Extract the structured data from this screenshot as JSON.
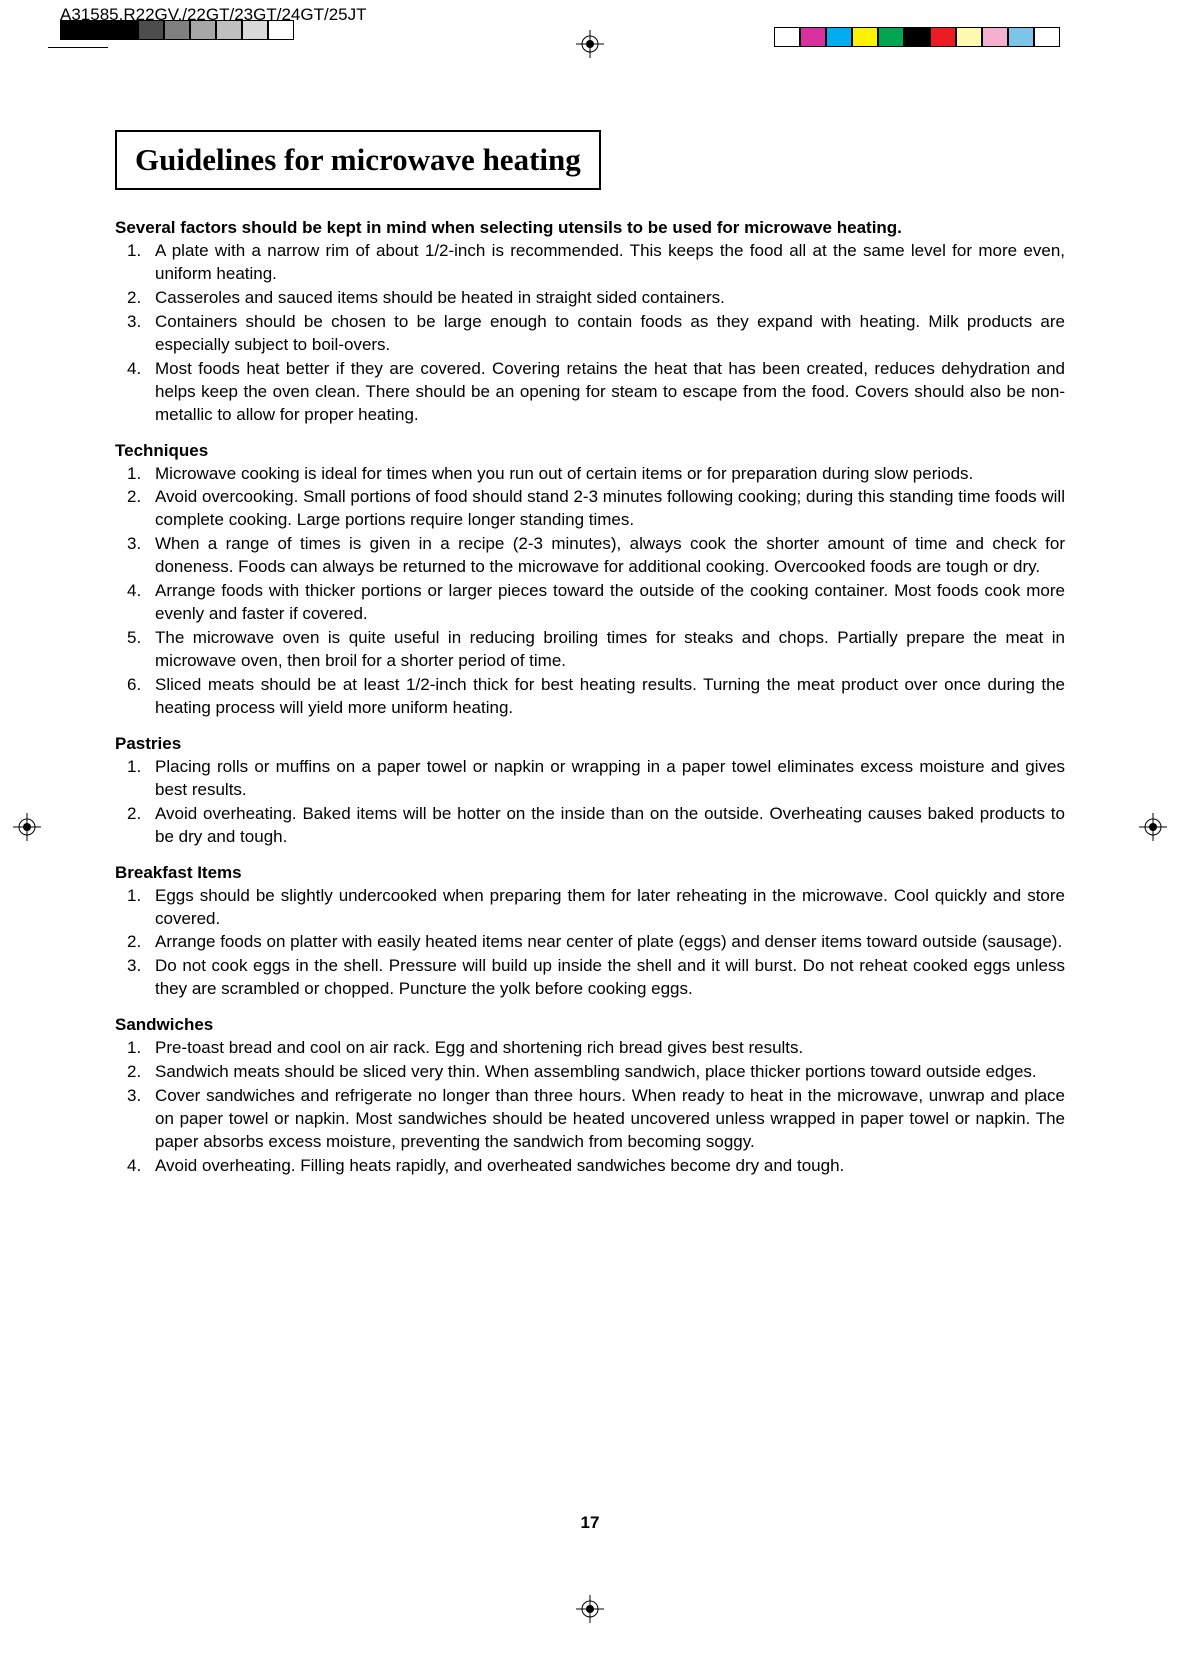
{
  "header_code": "A31585,R22GV,/22GT/23GT/24GT/25JT",
  "print_marks_left_colors": [
    "#000000",
    "#000000",
    "#000000",
    "#4d4d4d",
    "#808080",
    "#a6a6a6",
    "#bfbfbf",
    "#d9d9d9",
    "#ffffff"
  ],
  "print_marks_right_colors": [
    "#ffffff",
    "#d930a0",
    "#00adef",
    "#fff200",
    "#00a651",
    "#000000",
    "#ed1c24",
    "#fff9b1",
    "#f6b0cf",
    "#7cc5e8",
    "#ffffff"
  ],
  "title": "Guidelines for microwave heating",
  "intro_heading": "Several factors should be kept in mind when selecting utensils to be used for microwave heating.",
  "intro_items": [
    "A plate with a narrow rim of about 1/2-inch is recommended. This keeps the food all at the same level for more even, uniform heating.",
    "Casseroles and sauced items should be heated in straight sided containers.",
    "Containers should be chosen to be large enough to contain foods as they expand with heating. Milk products are especially subject to boil-overs.",
    "Most foods heat better if they are covered. Covering retains the heat that has been created, reduces dehydration and helps keep the oven clean. There should be an opening for steam to escape from the food. Covers should also be non-metallic to allow for proper heating."
  ],
  "sections": [
    {
      "heading": "Techniques",
      "items": [
        "Microwave cooking is ideal for times when you run out of certain items or for preparation during slow periods.",
        "Avoid overcooking. Small portions of food should stand 2-3 minutes following cooking; during this standing time foods will complete cooking. Large portions require longer standing times.",
        "When a range of times is given in a recipe (2-3 minutes), always cook the shorter amount of time and check for doneness. Foods can always be returned to the microwave for additional cooking. Overcooked foods are tough or dry.",
        "Arrange foods with thicker portions or larger pieces toward the outside of the cooking container. Most foods cook more evenly and faster if covered.",
        "The microwave oven is quite useful in reducing broiling times for steaks and chops. Partially prepare the meat in microwave oven, then broil for a shorter period of time.",
        "Sliced meats should be at least 1/2-inch thick for best heating results. Turning the meat product over once during the heating process will yield more uniform heating."
      ]
    },
    {
      "heading": "Pastries",
      "items": [
        "Placing rolls or muffins on a paper towel or napkin or wrapping in a paper towel eliminates excess moisture and gives best results.",
        "Avoid overheating. Baked items will be hotter on the inside than on the outside. Overheating causes baked products to be dry and tough."
      ]
    },
    {
      "heading": "Breakfast Items",
      "items": [
        "Eggs should be slightly undercooked when preparing them for later reheating in the microwave. Cool quickly and store covered.",
        "Arrange foods on platter with easily heated items near center of plate (eggs) and denser items toward outside (sausage).",
        "Do not cook eggs in the shell. Pressure will build up inside the shell and it will burst. Do not reheat cooked eggs unless they are scrambled or chopped. Puncture the yolk before cooking eggs."
      ]
    },
    {
      "heading": "Sandwiches",
      "items": [
        "Pre-toast bread and cool on air rack. Egg and shortening rich bread gives best results.",
        "Sandwich meats should be sliced very thin. When assembling sandwich, place thicker portions toward outside edges.",
        "Cover sandwiches and refrigerate no longer than three hours. When ready to heat in the microwave, unwrap and place on paper towel or napkin. Most sandwiches should be heated uncovered unless wrapped in paper towel or napkin. The paper absorbs excess moisture, preventing the sandwich from becoming soggy.",
        "Avoid overheating. Filling heats rapidly, and overheated sandwiches become dry and tough."
      ]
    }
  ],
  "page_number": "17"
}
